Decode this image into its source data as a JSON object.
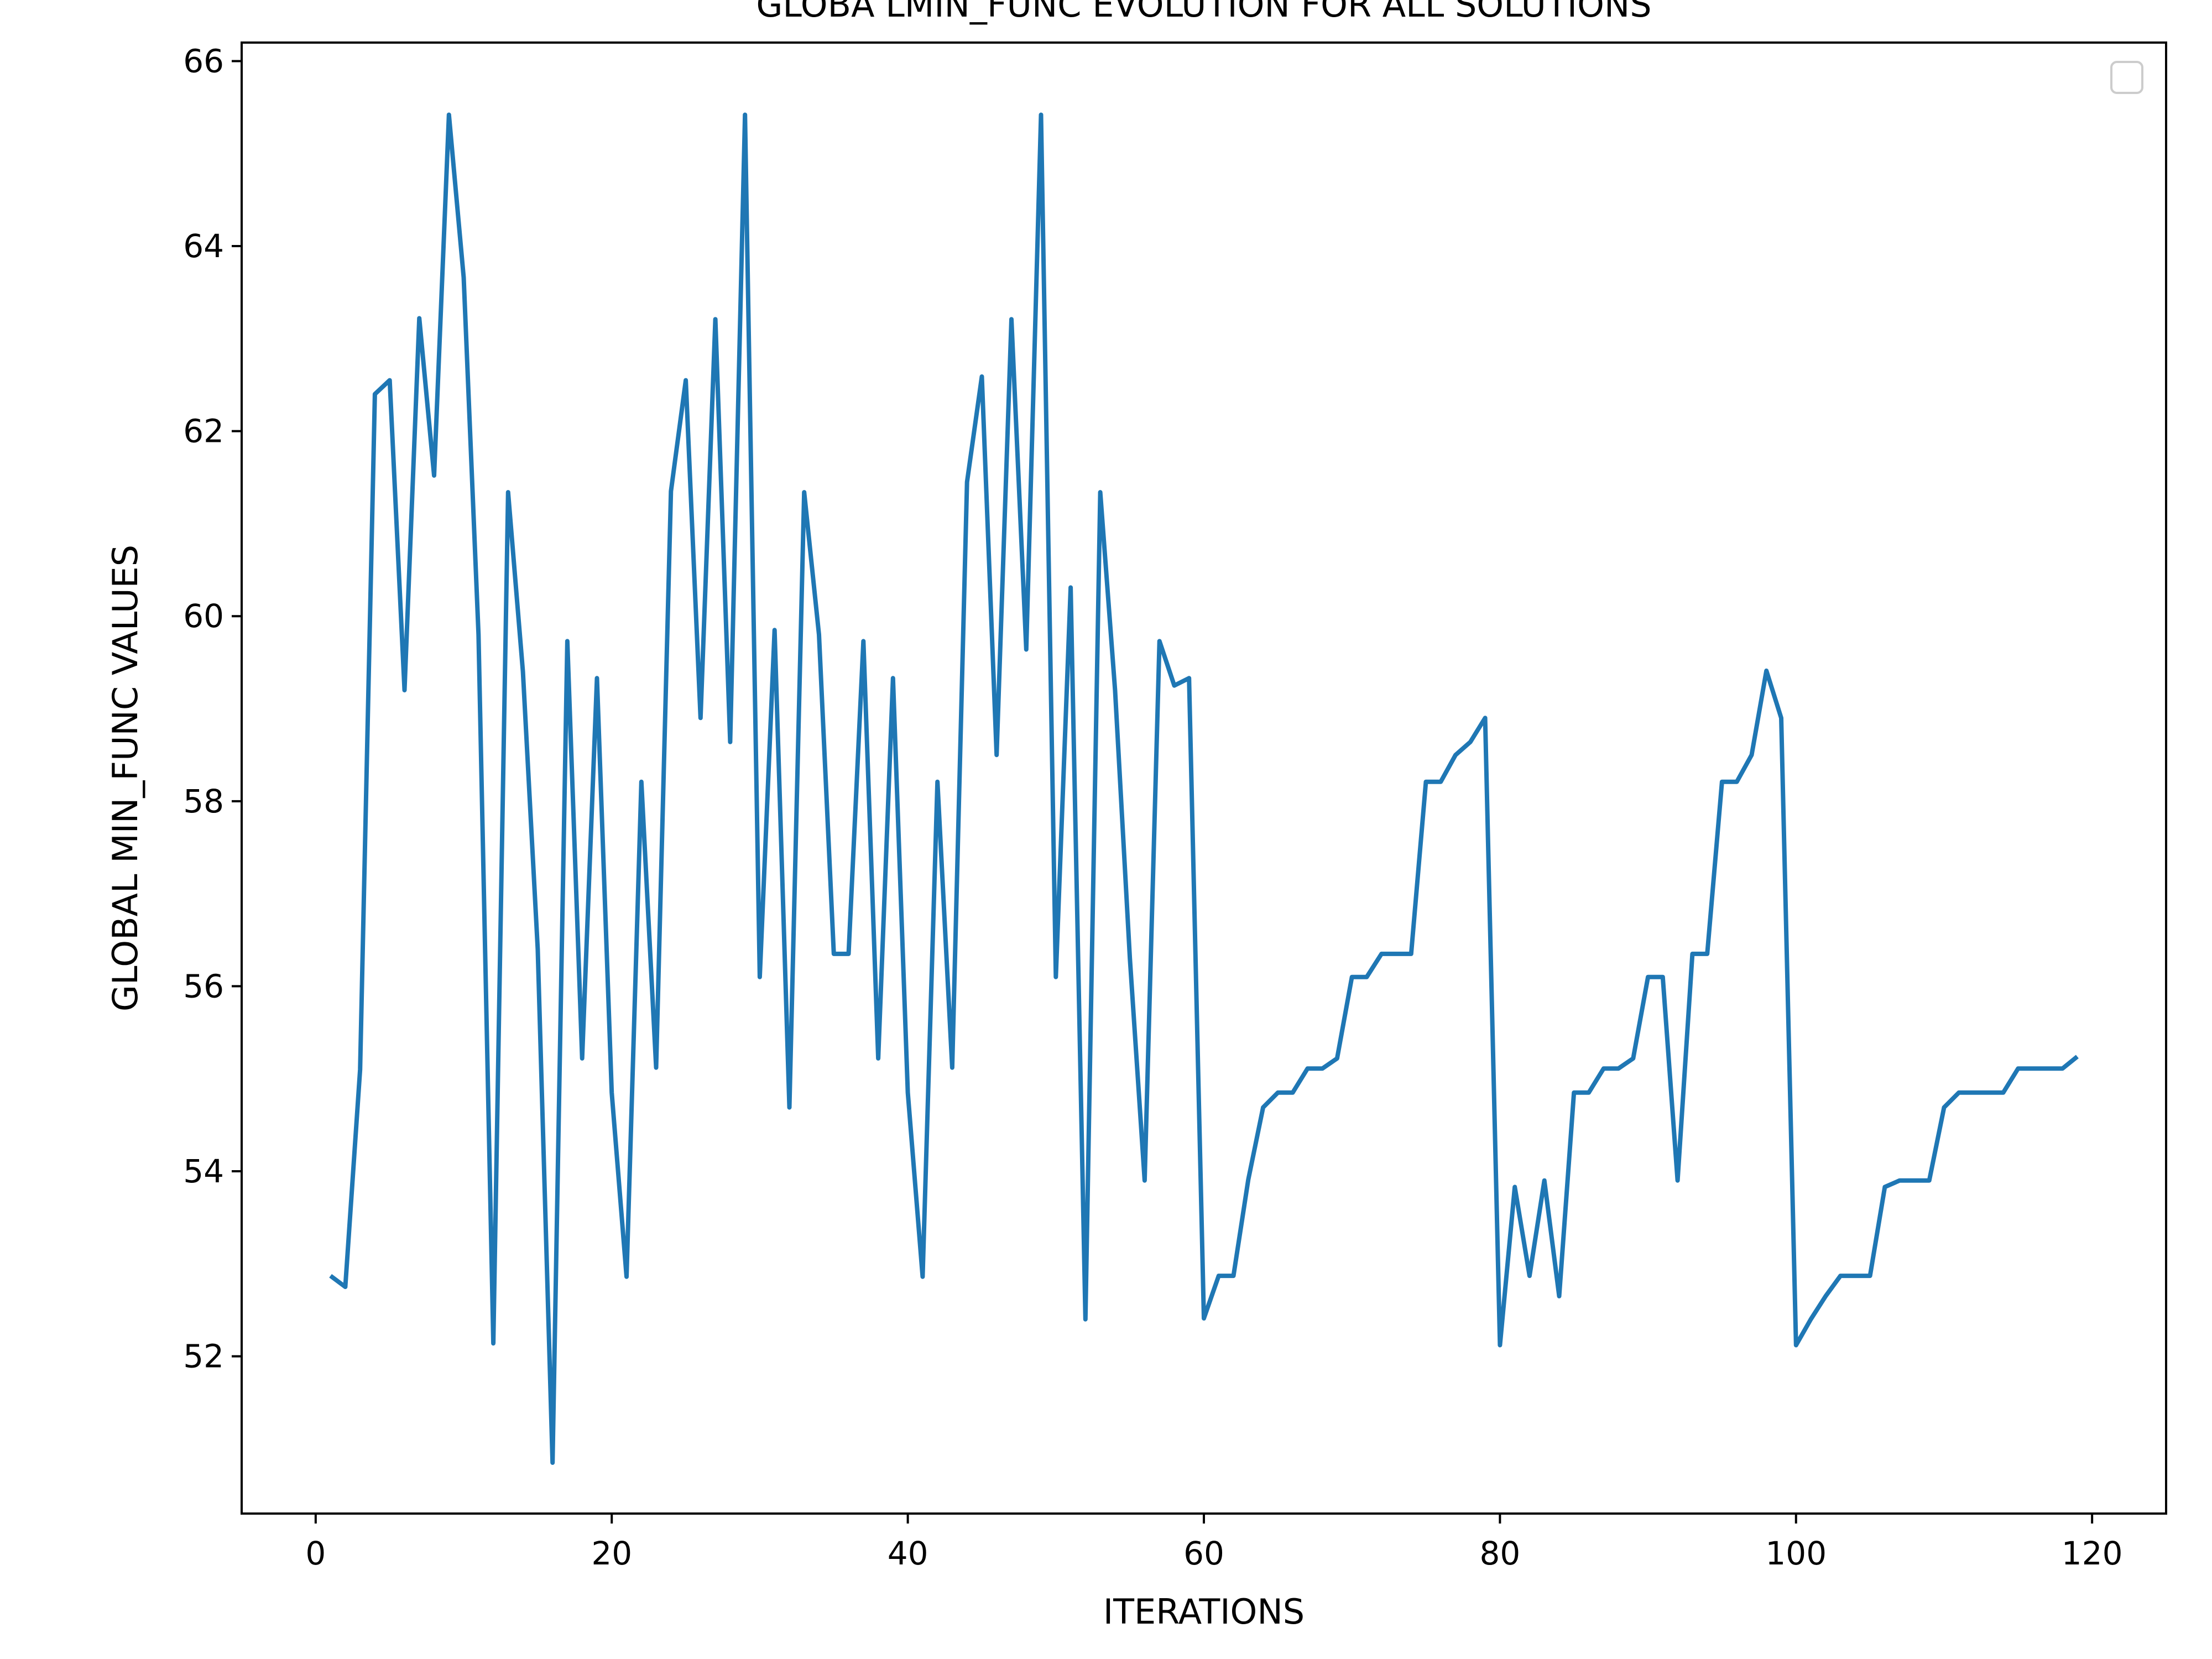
{
  "chart_data": {
    "type": "line",
    "title": "GLOBA LMIN_FUNC EVOLUTION FOR ALL SOLUTIONS",
    "xlabel": "ITERATIONS",
    "ylabel": "GLOBAL MIN_FUNC VALUES",
    "xlim": [
      -5,
      125
    ],
    "ylim": [
      50.3,
      66.2
    ],
    "xticks": [
      0,
      20,
      40,
      60,
      80,
      100,
      120
    ],
    "yticks": [
      52,
      54,
      56,
      58,
      60,
      62,
      64,
      66
    ],
    "grid": false,
    "legend": {
      "placement": "top-right",
      "entries": []
    },
    "colors": {
      "line": "#1f77b4"
    },
    "series": [
      {
        "x": [
          1,
          2,
          3,
          4,
          5,
          6,
          7,
          8,
          9,
          10,
          11,
          12,
          13,
          14,
          15,
          16,
          17,
          18,
          19,
          20,
          21,
          22,
          23,
          24,
          25,
          26,
          27,
          28,
          29,
          30,
          31,
          32,
          33,
          34,
          35,
          36,
          37,
          38,
          39,
          40,
          41,
          42,
          43,
          44,
          45,
          46,
          47,
          48,
          49,
          50,
          51,
          52,
          53,
          54,
          55,
          56,
          57,
          58,
          59,
          60,
          61,
          62,
          63,
          64,
          65,
          66,
          67,
          68,
          69,
          70,
          71,
          72,
          73,
          74,
          75,
          76,
          77,
          78,
          79,
          80,
          81,
          82,
          83,
          84,
          85,
          86,
          87,
          88,
          89,
          90,
          91,
          92,
          93,
          94,
          95,
          96,
          97,
          98,
          99,
          100,
          101,
          102,
          103,
          104,
          105,
          106,
          107,
          108,
          109,
          110,
          111,
          112,
          113,
          114,
          115,
          116,
          117,
          118,
          119
        ],
        "values": [
          52.87,
          52.75,
          55.1,
          62.4,
          62.55,
          59.2,
          63.22,
          61.52,
          65.42,
          63.66,
          59.8,
          52.14,
          61.34,
          59.4,
          56.4,
          50.85,
          59.73,
          55.22,
          59.33,
          54.85,
          52.86,
          58.21,
          55.12,
          61.35,
          62.55,
          58.9,
          63.21,
          58.64,
          65.42,
          56.1,
          59.85,
          54.69,
          61.34,
          59.8,
          56.35,
          56.35,
          59.73,
          55.22,
          59.33,
          54.85,
          52.86,
          58.21,
          55.12,
          61.45,
          62.59,
          58.5,
          63.21,
          59.64,
          65.42,
          56.1,
          60.31,
          52.4,
          61.34,
          59.2,
          56.3,
          53.9,
          59.73,
          59.25,
          59.33,
          52.41,
          52.87,
          52.87,
          53.91,
          54.69,
          54.85,
          54.85,
          55.11,
          55.11,
          55.22,
          56.1,
          56.1,
          56.35,
          56.35,
          56.35,
          58.21,
          58.21,
          58.5,
          58.64,
          58.9,
          52.12,
          53.83,
          52.87,
          53.9,
          52.65,
          54.85,
          54.85,
          55.11,
          55.11,
          55.22,
          56.1,
          56.1,
          53.9,
          56.35,
          56.35,
          58.21,
          58.21,
          58.5,
          59.41,
          58.9,
          52.12,
          52.4,
          52.65,
          52.87,
          52.87,
          52.87,
          53.83,
          53.9,
          53.9,
          53.9,
          54.69,
          54.85,
          54.85,
          54.85,
          54.85,
          55.11,
          55.11,
          55.11,
          55.11,
          55.24
        ]
      }
    ]
  }
}
